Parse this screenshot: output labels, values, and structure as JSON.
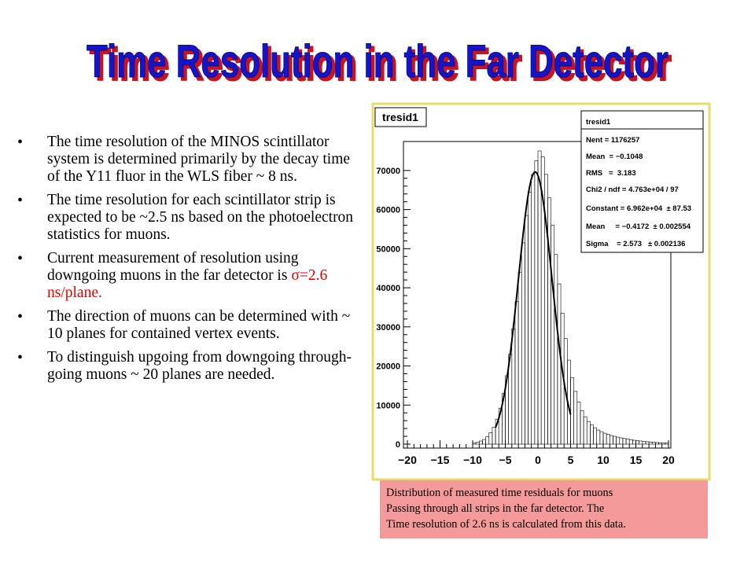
{
  "slide": {
    "title": "Time Resolution in the Far Detector",
    "colors": {
      "title_fill": "#1414c8",
      "title_shadow": "#c8141e",
      "caption_bg": "#f49a9a",
      "highlight": "#e00000"
    },
    "bullets": [
      {
        "text": "The time resolution of the MINOS scintillator system is determined primarily by the decay time of the Y11 fluor in the WLS fiber ~ 8 ns."
      },
      {
        "text": "The time resolution for each scintillator strip is expected to be ~2.5 ns based on the photoelectron statistics for muons."
      },
      {
        "text": "Current measurement of resolution using downgoing muons in the far detector is ",
        "highlight": "σ=2.6 ns/plane."
      },
      {
        "text": "The direction of muons can be determined with ~ 10 planes for contained vertex events."
      },
      {
        "text": "To distinguish upgoing from downgoing through-going muons ~ 20 planes are needed."
      }
    ],
    "caption": {
      "lines": [
        "Distribution of measured time residuals for muons",
        "Passing through all strips in the far detector. The",
        "Time resolution of 2.6 ns is calculated from this data."
      ]
    }
  },
  "chart_data": {
    "type": "histogram",
    "title": "tresid1",
    "xlim": [
      -20,
      20
    ],
    "ylim": [
      0,
      75000
    ],
    "xticks": [
      -20,
      -15,
      -10,
      -5,
      0,
      5,
      10,
      15,
      20
    ],
    "yticks": [
      0,
      10000,
      20000,
      30000,
      40000,
      50000,
      60000,
      70000
    ],
    "bin_width": 0.5,
    "histogram": {
      "x": [
        -10,
        -9.5,
        -9,
        -8.5,
        -8,
        -7.5,
        -7,
        -6.5,
        -6,
        -5.5,
        -5,
        -4.5,
        -4,
        -3.5,
        -3,
        -2.5,
        -2,
        -1.5,
        -1,
        -0.5,
        0,
        0.5,
        1,
        1.5,
        2,
        2.5,
        3,
        3.5,
        4,
        4.5,
        5,
        5.5,
        6,
        6.5,
        7,
        7.5,
        8,
        8.5,
        9,
        9.5,
        10,
        10.5,
        11,
        11.5,
        12,
        12.5,
        13,
        13.5,
        14,
        14.5,
        15,
        15.5,
        16,
        16.5,
        17,
        17.5,
        18,
        18.5,
        19,
        19.5
      ],
      "counts": [
        300,
        500,
        800,
        1200,
        1900,
        2900,
        4300,
        6400,
        9200,
        13000,
        17500,
        23000,
        29500,
        36500,
        44000,
        51500,
        58500,
        64500,
        69000,
        72500,
        75000,
        73500,
        69000,
        63000,
        56000,
        48500,
        41000,
        33500,
        27000,
        21500,
        17000,
        13500,
        10800,
        8600,
        7000,
        5800,
        4900,
        4200,
        3600,
        3200,
        2800,
        2500,
        2200,
        2000,
        1800,
        1600,
        1450,
        1300,
        1150,
        1000,
        900,
        800,
        700,
        620,
        540,
        470,
        410,
        360,
        310,
        270
      ]
    },
    "fit": {
      "function": "gaus",
      "constant": 69620,
      "mean": -0.4172,
      "sigma": 2.573,
      "range": [
        -6.5,
        5
      ]
    },
    "stats_box": {
      "name": "tresid1",
      "lines": [
        "Nent = 1176257",
        "Mean  = −0.1048",
        "RMS   =  3.183",
        "Chi2 / ndf = 4.763e+04 / 97",
        "Constant = 6.962e+04  ± 87.53",
        "Mean     = −0.4172  ± 0.002554",
        "Sigma    = 2.573   ± 0.002136"
      ]
    }
  }
}
